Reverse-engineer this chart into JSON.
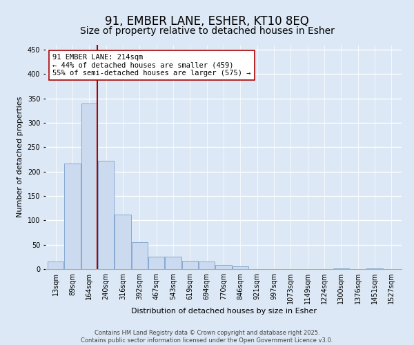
{
  "title_line1": "91, EMBER LANE, ESHER, KT10 8EQ",
  "title_line2": "Size of property relative to detached houses in Esher",
  "xlabel": "Distribution of detached houses by size in Esher",
  "ylabel": "Number of detached properties",
  "categories": [
    "13sqm",
    "89sqm",
    "164sqm",
    "240sqm",
    "316sqm",
    "392sqm",
    "467sqm",
    "543sqm",
    "619sqm",
    "694sqm",
    "770sqm",
    "846sqm",
    "921sqm",
    "997sqm",
    "1073sqm",
    "1149sqm",
    "1224sqm",
    "1300sqm",
    "1376sqm",
    "1451sqm",
    "1527sqm"
  ],
  "values": [
    15,
    217,
    340,
    222,
    112,
    55,
    26,
    25,
    17,
    16,
    8,
    5,
    0,
    0,
    0,
    0,
    0,
    1,
    0,
    1,
    0
  ],
  "bar_color": "#ccdaf0",
  "bar_edge_color": "#7aa0cc",
  "background_color": "#dce8f5",
  "grid_color": "#ffffff",
  "vline_color": "#aa0000",
  "annotation_text": "91 EMBER LANE: 214sqm\n← 44% of detached houses are smaller (459)\n55% of semi-detached houses are larger (575) →",
  "annotation_box_color": "#ffffff",
  "annotation_box_edge_color": "#aa0000",
  "footer_line1": "Contains HM Land Registry data © Crown copyright and database right 2025.",
  "footer_line2": "Contains public sector information licensed under the Open Government Licence v3.0.",
  "ylim": [
    0,
    460
  ],
  "title_fontsize": 12,
  "subtitle_fontsize": 10,
  "tick_fontsize": 7,
  "ylabel_fontsize": 8,
  "xlabel_fontsize": 8,
  "footer_fontsize": 6,
  "annotation_fontsize": 7.5
}
